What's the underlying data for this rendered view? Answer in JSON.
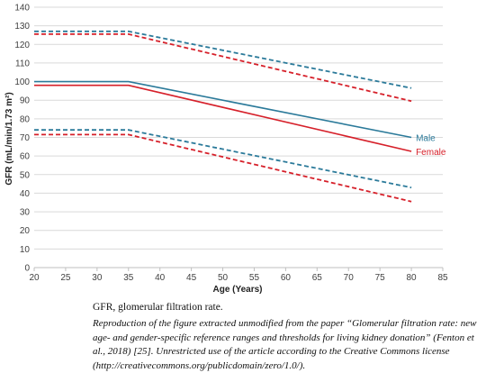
{
  "chart_data": {
    "type": "line",
    "xlabel": "Age (Years)",
    "ylabel": "GFR (mL/min/1.73 m²)",
    "xlim": [
      20,
      85
    ],
    "ylim": [
      0,
      140
    ],
    "x_ticks": [
      20,
      25,
      30,
      35,
      40,
      45,
      50,
      55,
      60,
      65,
      70,
      75,
      80,
      85
    ],
    "y_ticks": [
      0,
      10,
      20,
      30,
      40,
      50,
      60,
      70,
      80,
      90,
      100,
      110,
      120,
      130,
      140
    ],
    "grid": "horizontal",
    "colors": {
      "male": "#2B7A9A",
      "female": "#D6202A",
      "grid": "#D9D9D9"
    },
    "series": [
      {
        "name": "Male",
        "group": "male",
        "style": "solid",
        "labeled": true,
        "x": [
          20,
          35,
          80
        ],
        "y": [
          100,
          100,
          70
        ]
      },
      {
        "name": "Female",
        "group": "female",
        "style": "solid",
        "labeled": true,
        "x": [
          20,
          35,
          80
        ],
        "y": [
          98,
          98,
          62.5
        ]
      },
      {
        "group": "male",
        "style": "dashed",
        "labeled": false,
        "x": [
          20,
          35,
          80
        ],
        "y": [
          127,
          127,
          96.5
        ]
      },
      {
        "group": "female",
        "style": "dashed",
        "labeled": false,
        "x": [
          20,
          35,
          80
        ],
        "y": [
          125.5,
          125.5,
          89.5
        ]
      },
      {
        "group": "male",
        "style": "dashed",
        "labeled": false,
        "x": [
          20,
          35,
          80
        ],
        "y": [
          74,
          74,
          43
        ]
      },
      {
        "group": "female",
        "style": "dashed",
        "labeled": false,
        "x": [
          20,
          35,
          80
        ],
        "y": [
          71.5,
          71.5,
          35.5
        ]
      }
    ]
  },
  "caption": {
    "main": "GFR, glomerular filtration rate.",
    "note": "Reproduction of the figure extracted unmodified from the paper “Glomerular filtration rate: new age- and gender-specific reference ranges and thresholds for living kidney donation” (Fenton et al., 2018) [25]. Unrestricted use of the article according to the Creative Commons license (http://creativecommons.org/publicdomain/zero/1.0/)."
  }
}
